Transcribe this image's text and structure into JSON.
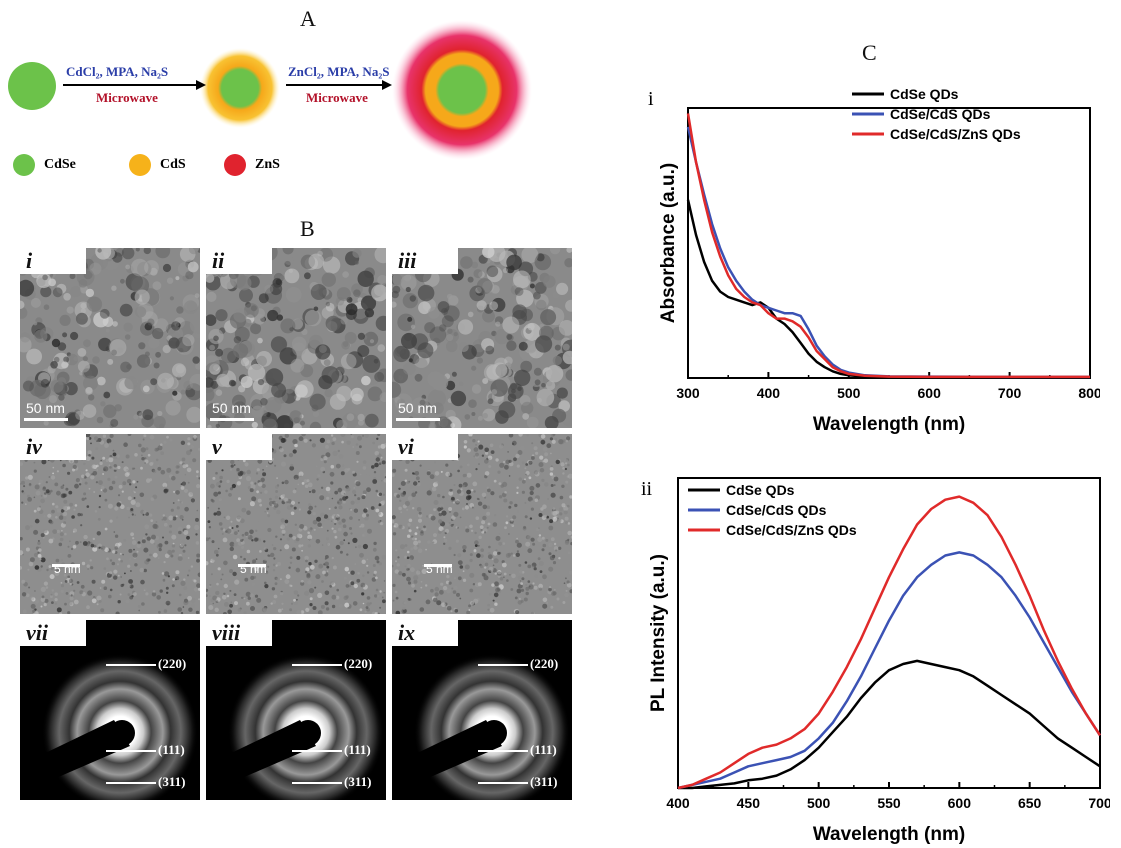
{
  "panel_a": {
    "letter": "A",
    "step1_reagents": "CdCl₂, MPA, Na₂S",
    "step1_method": "Microwave",
    "step2_reagents": "ZnCl₂, MPA, Na₂S",
    "step2_method": "Microwave",
    "legend": [
      {
        "label": "CdSe",
        "color": "#6cc24a"
      },
      {
        "label": "CdS",
        "color": "#f6b21a"
      },
      {
        "label": "ZnS",
        "color": "#e0232e"
      }
    ],
    "colors": {
      "reagents": "#2b3ea8",
      "method": "#b3122a"
    }
  },
  "panel_b": {
    "letter": "B",
    "tiles": [
      {
        "tag": "i",
        "scale": "50 nm",
        "kind": "low"
      },
      {
        "tag": "ii",
        "scale": "50 nm",
        "kind": "low"
      },
      {
        "tag": "iii",
        "scale": "50 nm",
        "kind": "low"
      },
      {
        "tag": "iv",
        "scale": "5 nm",
        "kind": "hr"
      },
      {
        "tag": "v",
        "scale": "5 nm",
        "kind": "hr"
      },
      {
        "tag": "vi",
        "scale": "5 nm",
        "kind": "hr"
      },
      {
        "tag": "vii",
        "kind": "saed"
      },
      {
        "tag": "viii",
        "kind": "saed"
      },
      {
        "tag": "ix",
        "kind": "saed"
      }
    ],
    "saed_labels": [
      "(220)",
      "(111)",
      "(311)"
    ]
  },
  "panel_c": {
    "letter": "C",
    "chart_data": [
      {
        "panel_label": "i",
        "type": "line",
        "xlabel": "Wavelength (nm)",
        "ylabel": "Absorbance (a.u.)",
        "xlim": [
          300,
          800
        ],
        "ylim": [
          0,
          1
        ],
        "xticks": [
          300,
          400,
          500,
          600,
          700,
          800
        ],
        "legend_position": "top-right",
        "series": [
          {
            "name": "CdSe QDs",
            "color": "#000000",
            "x": [
              300,
              310,
              320,
              330,
              340,
              350,
              360,
              370,
              380,
              390,
              400,
              410,
              420,
              430,
              440,
              450,
              460,
              470,
              480,
              490,
              500,
              520,
              550,
              600,
              700,
              800
            ],
            "y": [
              0.66,
              0.53,
              0.43,
              0.36,
              0.32,
              0.3,
              0.29,
              0.28,
              0.27,
              0.28,
              0.26,
              0.22,
              0.2,
              0.17,
              0.13,
              0.09,
              0.06,
              0.04,
              0.025,
              0.015,
              0.01,
              0.005,
              0.003,
              0.003,
              0.003,
              0.003
            ]
          },
          {
            "name": "CdSe/CdS QDs",
            "color": "#3b52b4",
            "x": [
              300,
              310,
              320,
              330,
              340,
              350,
              360,
              370,
              380,
              390,
              400,
              410,
              420,
              430,
              440,
              450,
              460,
              470,
              480,
              490,
              500,
              520,
              550,
              600,
              700,
              800
            ],
            "y": [
              0.93,
              0.8,
              0.68,
              0.57,
              0.48,
              0.41,
              0.36,
              0.32,
              0.29,
              0.27,
              0.26,
              0.25,
              0.24,
              0.24,
              0.23,
              0.18,
              0.12,
              0.08,
              0.05,
              0.03,
              0.02,
              0.01,
              0.006,
              0.005,
              0.004,
              0.004
            ]
          },
          {
            "name": "CdSe/CdS/ZnS QDs",
            "color": "#e02a2a",
            "x": [
              300,
              310,
              320,
              330,
              340,
              350,
              360,
              370,
              380,
              390,
              400,
              410,
              420,
              430,
              440,
              450,
              460,
              470,
              480,
              490,
              500,
              520,
              550,
              600,
              700,
              800
            ],
            "y": [
              0.98,
              0.8,
              0.66,
              0.54,
              0.45,
              0.38,
              0.33,
              0.3,
              0.28,
              0.27,
              0.24,
              0.22,
              0.22,
              0.21,
              0.19,
              0.15,
              0.1,
              0.07,
              0.04,
              0.025,
              0.015,
              0.008,
              0.005,
              0.004,
              0.004,
              0.004
            ]
          }
        ]
      },
      {
        "panel_label": "ii",
        "type": "line",
        "xlabel": "Wavelength (nm)",
        "ylabel": "PL Intensity (a.u.)",
        "xlim": [
          400,
          700
        ],
        "ylim": [
          0,
          1
        ],
        "xticks": [
          400,
          450,
          500,
          550,
          600,
          650,
          700
        ],
        "legend_position": "top-left",
        "series": [
          {
            "name": "CdSe QDs",
            "color": "#000000",
            "x": [
              400,
              410,
              420,
              430,
              440,
              450,
              460,
              470,
              480,
              490,
              500,
              510,
              520,
              530,
              540,
              550,
              560,
              570,
              580,
              590,
              600,
              610,
              620,
              630,
              640,
              650,
              660,
              670,
              680,
              690,
              700
            ],
            "y": [
              0.0,
              0.0,
              0.005,
              0.01,
              0.015,
              0.025,
              0.03,
              0.04,
              0.06,
              0.09,
              0.13,
              0.18,
              0.23,
              0.29,
              0.34,
              0.38,
              0.4,
              0.41,
              0.4,
              0.39,
              0.38,
              0.36,
              0.33,
              0.3,
              0.27,
              0.24,
              0.2,
              0.16,
              0.13,
              0.1,
              0.07
            ]
          },
          {
            "name": "CdSe/CdS QDs",
            "color": "#3b52b4",
            "x": [
              400,
              410,
              420,
              430,
              440,
              450,
              460,
              470,
              480,
              490,
              500,
              510,
              520,
              530,
              540,
              550,
              560,
              570,
              580,
              590,
              600,
              610,
              620,
              630,
              640,
              650,
              660,
              670,
              680,
              690,
              700
            ],
            "y": [
              0.0,
              0.01,
              0.02,
              0.03,
              0.05,
              0.07,
              0.08,
              0.09,
              0.1,
              0.12,
              0.16,
              0.21,
              0.28,
              0.36,
              0.45,
              0.54,
              0.62,
              0.68,
              0.72,
              0.75,
              0.76,
              0.75,
              0.72,
              0.68,
              0.62,
              0.55,
              0.47,
              0.39,
              0.31,
              0.24,
              0.17
            ]
          },
          {
            "name": "CdSe/CdS/ZnS QDs",
            "color": "#e02a2a",
            "x": [
              400,
              410,
              420,
              430,
              440,
              450,
              460,
              470,
              480,
              490,
              500,
              510,
              520,
              530,
              540,
              550,
              560,
              570,
              580,
              590,
              600,
              610,
              620,
              630,
              640,
              650,
              660,
              670,
              680,
              690,
              700
            ],
            "y": [
              0.0,
              0.01,
              0.03,
              0.05,
              0.08,
              0.11,
              0.13,
              0.14,
              0.16,
              0.19,
              0.24,
              0.31,
              0.39,
              0.48,
              0.58,
              0.68,
              0.77,
              0.85,
              0.9,
              0.93,
              0.94,
              0.92,
              0.88,
              0.81,
              0.72,
              0.62,
              0.51,
              0.41,
              0.32,
              0.24,
              0.17
            ]
          }
        ]
      }
    ]
  }
}
